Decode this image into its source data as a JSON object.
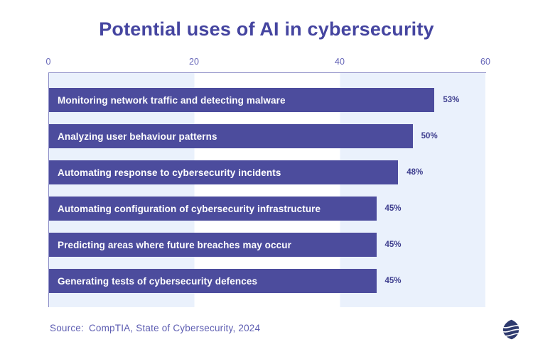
{
  "title": "Potential uses of AI in cybersecurity",
  "chart_data": {
    "type": "bar",
    "orientation": "horizontal",
    "title": "Potential uses of AI in cybersecurity",
    "categories": [
      "Monitoring network traffic and detecting malware",
      "Analyzing user behaviour patterns",
      "Automating response to cybersecurity incidents",
      "Automating configuration of cybersecurity infrastructure",
      "Predicting areas where future breaches may occur",
      "Generating tests of cybersecurity defences"
    ],
    "values": [
      53,
      50,
      48,
      45,
      45,
      45
    ],
    "value_labels": [
      "53%",
      "50%",
      "48%",
      "45%",
      "45%",
      "45%"
    ],
    "xlim": [
      0,
      60
    ],
    "ticks": [
      "0",
      "20",
      "40",
      "60"
    ],
    "axis_position": "top",
    "grid": "alternating-column-bands",
    "legend": "none",
    "xlabel": "",
    "ylabel": ""
  },
  "source": {
    "label": "Source:",
    "text": "CompTIA, State of Cybersecurity, 2024"
  },
  "icons": {
    "publisher_logo": "striped-pebble-logo"
  },
  "colors": {
    "background": "#FFFFFF",
    "title": "#4545A0",
    "bar": "#4C4C9D",
    "bar_label": "#FFFFFF",
    "value_label": "#3F3F8F",
    "tick_label": "#6666B8",
    "axis_line": "#9090C8",
    "band_light": "#EAF1FC",
    "band_white": "#FFFFFF",
    "source_text": "#5E5EB2",
    "logo": "#2E3A6E"
  }
}
